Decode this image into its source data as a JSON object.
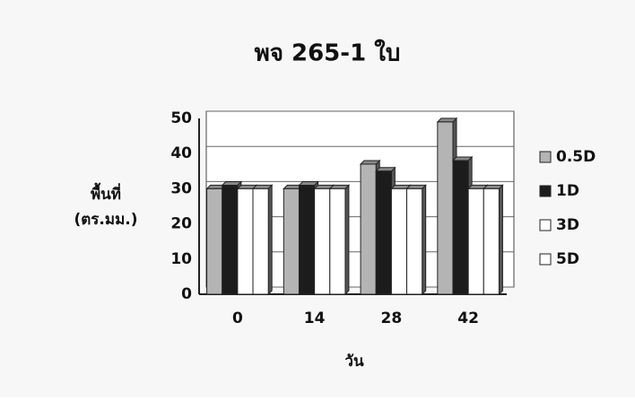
{
  "chart_data": {
    "type": "bar",
    "title": "พจ 265-1 ใบ",
    "x_label": "วัน",
    "y_label": [
      "พื้นที่",
      "(ตร.มม.)"
    ],
    "categories": [
      "0",
      "14",
      "28",
      "42"
    ],
    "series": [
      {
        "name": "0.5D",
        "color": "#b4b4b4",
        "values": [
          30,
          30,
          37,
          49
        ]
      },
      {
        "name": "1D",
        "color": "#1c1c1c",
        "values": [
          31,
          31,
          35,
          38
        ]
      },
      {
        "name": "3D",
        "color": "#ffffff",
        "values": [
          30,
          30,
          30,
          30
        ]
      },
      {
        "name": "5D",
        "color": "#ffffff",
        "values": [
          30,
          30,
          30,
          30
        ]
      }
    ],
    "ylim": [
      0,
      50
    ],
    "yticks": [
      0,
      10,
      20,
      30,
      40,
      50
    ],
    "grid": true,
    "legend": "right"
  }
}
